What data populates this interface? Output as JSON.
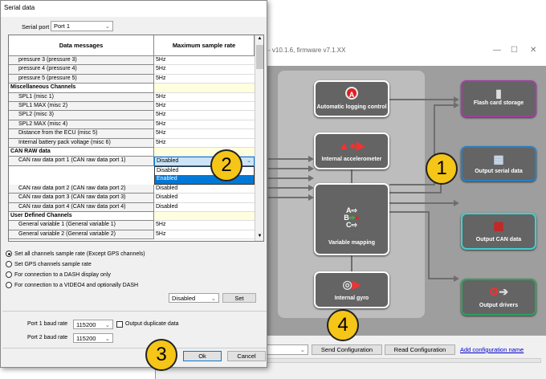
{
  "background_window": {
    "title": "- v10.1.6, firmware v7.1.XX",
    "nodes": {
      "auto_logging": "Automatic logging control",
      "accelerometer": "Internal accelerometer",
      "variable_mapping": "Variable mapping",
      "gyro": "Internal gyro",
      "flash": "Flash card storage",
      "serial": "Output serial data",
      "can": "Output CAN data",
      "drivers": "Output drivers"
    },
    "node_colors": {
      "flash": "#a040a0",
      "serial": "#2a7fc0",
      "can": "#40d0d0",
      "drivers": "#30a060"
    },
    "send_configuration": "Send Configuration",
    "read_configuration": "Read Configuration",
    "add_configuration_name": "Add configuration name"
  },
  "dialog": {
    "title": "Serial data",
    "serial_port_label": "Serial port",
    "serial_port_value": "Port 1",
    "table": {
      "headers": [
        "Data messages",
        "Maximum sample rate"
      ],
      "rows": [
        {
          "name": "pressure 3 (pressure 3)",
          "rate": "5Hz"
        },
        {
          "name": "pressure 4 (pressure 4)",
          "rate": "5Hz"
        },
        {
          "name": "pressure 5 (pressure 5)",
          "rate": "5Hz"
        },
        {
          "name": "Miscellaneous Channels",
          "rate": "",
          "group": true
        },
        {
          "name": "SPL1 (misc 1)",
          "rate": "5Hz"
        },
        {
          "name": "SPL1 MAX (misc 2)",
          "rate": "5Hz"
        },
        {
          "name": "SPL2 (misc 3)",
          "rate": "5Hz"
        },
        {
          "name": "SPL2 MAX (misc 4)",
          "rate": "5Hz"
        },
        {
          "name": "Distance from the ECU (misc 5)",
          "rate": "5Hz"
        },
        {
          "name": "Internal battery pack voltage (misc 6)",
          "rate": "5Hz"
        },
        {
          "name": "CAN RAW data",
          "rate": "",
          "group": true
        },
        {
          "name": "CAN raw data port 1 (CAN raw data port 1)",
          "rate": "Disabled",
          "dropdown": true
        },
        {
          "name": "CAN raw data port 2 (CAN raw data port 2)",
          "rate": "Disabled"
        },
        {
          "name": "CAN raw data port 3 (CAN raw data port 3)",
          "rate": "Disabled"
        },
        {
          "name": "CAN raw data port 4 (CAN raw data port 4)",
          "rate": "Disabled"
        },
        {
          "name": "User Defined Channels",
          "rate": "",
          "group": true
        },
        {
          "name": "General variable 1 (General variable 1)",
          "rate": "5Hz"
        },
        {
          "name": "General variable 2 (General variable 2)",
          "rate": "5Hz"
        }
      ],
      "dropdown_options": [
        "Disabled",
        "Enabled"
      ],
      "dropdown_highlighted": "Enabled"
    },
    "radios": [
      {
        "label": "Set all channels sample rate (Except GPS channels)",
        "checked": true
      },
      {
        "label": "Set GPS channels sample rate",
        "checked": false
      },
      {
        "label": "For connection to a DASH display only",
        "checked": false
      },
      {
        "label": "For connection to a VIDEO4 and optionally DASH",
        "checked": false
      }
    ],
    "rate_select": "Disabled",
    "set_button": "Set",
    "port1_baud_label": "Port 1 baud rate",
    "port1_baud": "115200",
    "port2_baud_label": "Port 2 baud rate",
    "port2_baud": "115200",
    "output_duplicate_label": "Output duplicate data",
    "output_duplicate_checked": false,
    "ok": "Ok",
    "cancel": "Cancel"
  },
  "callouts": [
    "1",
    "2",
    "3",
    "4"
  ]
}
